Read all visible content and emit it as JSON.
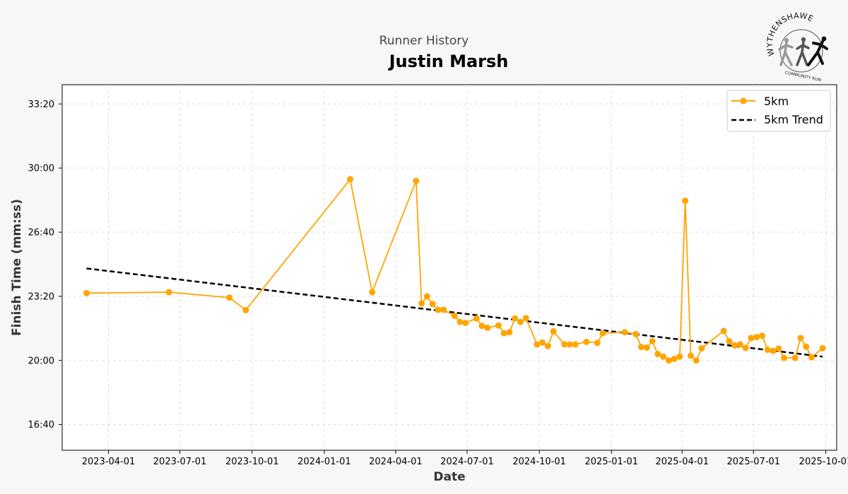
{
  "header": {
    "subtitle": "Runner History",
    "title": "Justin Marsh"
  },
  "logo": {
    "name": "WYTHENSHAWE",
    "tagline": "COMMUNITY RUN"
  },
  "colors": {
    "series": "#ffa500",
    "trend": "#000000",
    "grid": "#dddddd",
    "background": "#f7f7f7",
    "plot_background": "#ffffff"
  },
  "chart_data": {
    "type": "line",
    "xlabel": "Date",
    "ylabel": "Finish Time (mm:ss)",
    "xlim": [
      "2023-02-01",
      "2025-10-15"
    ],
    "ylim": [
      "15:20",
      "34:20"
    ],
    "x_ticks": [
      "2023-04-01",
      "2023-07-01",
      "2023-10-01",
      "2024-01-01",
      "2024-04-01",
      "2024-07-01",
      "2024-10-01",
      "2025-01-01",
      "2025-04-01",
      "2025-07-01",
      "2025-10-01"
    ],
    "y_ticks": [
      "16:40",
      "20:00",
      "23:20",
      "26:40",
      "30:00",
      "33:20"
    ],
    "grid": true,
    "legend_position": "top-right",
    "series": [
      {
        "name": "5km",
        "style": "solid-line-circle-markers",
        "points": [
          [
            "2023-03-04",
            "23:30"
          ],
          [
            "2023-06-17",
            "23:33"
          ],
          [
            "2023-09-02",
            "23:16"
          ],
          [
            "2023-09-23",
            "22:37"
          ],
          [
            "2024-02-03",
            "29:25"
          ],
          [
            "2024-03-02",
            "23:33"
          ],
          [
            "2024-04-27",
            "29:20"
          ],
          [
            "2024-05-04",
            "22:58"
          ],
          [
            "2024-05-11",
            "23:20"
          ],
          [
            "2024-05-18",
            "22:56"
          ],
          [
            "2024-05-25",
            "22:38"
          ],
          [
            "2024-06-01",
            "22:38"
          ],
          [
            "2024-06-15",
            "22:19"
          ],
          [
            "2024-06-22",
            "22:00"
          ],
          [
            "2024-06-29",
            "21:57"
          ],
          [
            "2024-07-13",
            "22:11"
          ],
          [
            "2024-07-20",
            "21:48"
          ],
          [
            "2024-07-27",
            "21:42"
          ],
          [
            "2024-08-10",
            "21:49"
          ],
          [
            "2024-08-17",
            "21:25"
          ],
          [
            "2024-08-24",
            "21:28"
          ],
          [
            "2024-08-31",
            "22:11"
          ],
          [
            "2024-09-07",
            "22:00"
          ],
          [
            "2024-09-14",
            "22:12"
          ],
          [
            "2024-09-28",
            "20:50"
          ],
          [
            "2024-10-05",
            "20:56"
          ],
          [
            "2024-10-12",
            "20:45"
          ],
          [
            "2024-10-19",
            "21:31"
          ],
          [
            "2024-11-02",
            "20:50"
          ],
          [
            "2024-11-09",
            "20:50"
          ],
          [
            "2024-11-16",
            "20:50"
          ],
          [
            "2024-11-30",
            "20:58"
          ],
          [
            "2024-12-14",
            "20:55"
          ],
          [
            "2024-12-21",
            "21:25"
          ],
          [
            "2025-01-18",
            "21:28"
          ],
          [
            "2025-02-01",
            "21:22"
          ],
          [
            "2025-02-08",
            "20:42"
          ],
          [
            "2025-02-15",
            "20:40"
          ],
          [
            "2025-02-22",
            "21:00"
          ],
          [
            "2025-03-01",
            "20:20"
          ],
          [
            "2025-03-08",
            "20:12"
          ],
          [
            "2025-03-15",
            "20:00"
          ],
          [
            "2025-03-22",
            "20:05"
          ],
          [
            "2025-03-29",
            "20:12"
          ],
          [
            "2025-04-05",
            "28:18"
          ],
          [
            "2025-04-12",
            "20:15"
          ],
          [
            "2025-04-19",
            "20:00"
          ],
          [
            "2025-04-26",
            "20:38"
          ],
          [
            "2025-05-24",
            "21:32"
          ],
          [
            "2025-05-31",
            "21:00"
          ],
          [
            "2025-06-07",
            "20:47"
          ],
          [
            "2025-06-14",
            "20:50"
          ],
          [
            "2025-06-21",
            "20:39"
          ],
          [
            "2025-06-28",
            "21:10"
          ],
          [
            "2025-07-05",
            "21:13"
          ],
          [
            "2025-07-12",
            "21:17"
          ],
          [
            "2025-07-19",
            "20:33"
          ],
          [
            "2025-07-26",
            "20:30"
          ],
          [
            "2025-08-02",
            "20:37"
          ],
          [
            "2025-08-09",
            "20:08"
          ],
          [
            "2025-08-23",
            "20:08"
          ],
          [
            "2025-08-30",
            "21:10"
          ],
          [
            "2025-09-06",
            "20:43"
          ],
          [
            "2025-09-13",
            "20:10"
          ],
          [
            "2025-09-27",
            "20:38"
          ]
        ]
      },
      {
        "name": "5km Trend",
        "style": "dashed-line",
        "points": [
          [
            "2023-03-04",
            "24:47"
          ],
          [
            "2025-09-27",
            "20:12"
          ]
        ]
      }
    ]
  }
}
